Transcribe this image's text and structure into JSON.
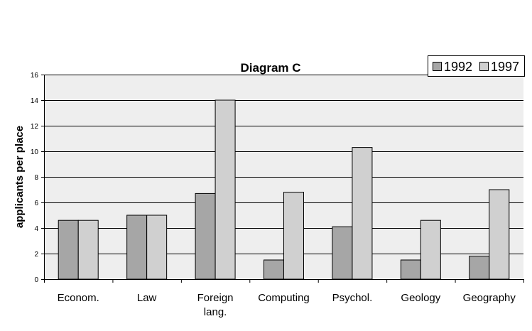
{
  "chart_data": {
    "type": "bar",
    "title": "Diagram C",
    "xlabel": "",
    "ylabel": "applicants per place",
    "categories": [
      "Econom.",
      "Law",
      "Foreign\nlang.",
      "Computing",
      "Psychol.",
      "Geology",
      "Geography"
    ],
    "series": [
      {
        "name": "1992",
        "values": [
          4.6,
          5.0,
          6.7,
          1.5,
          4.1,
          1.5,
          1.8
        ],
        "color": "#a6a6a6"
      },
      {
        "name": "1997",
        "values": [
          4.6,
          5.0,
          14.0,
          6.8,
          10.3,
          4.6,
          7.0
        ],
        "color": "#d0d0d0"
      }
    ],
    "ylim": [
      0,
      16
    ],
    "yticks": [
      0,
      2,
      4,
      6,
      8,
      10,
      12,
      14,
      16
    ],
    "grid": true,
    "legend_position": "top-right",
    "plot_background": "#eeeeee"
  }
}
